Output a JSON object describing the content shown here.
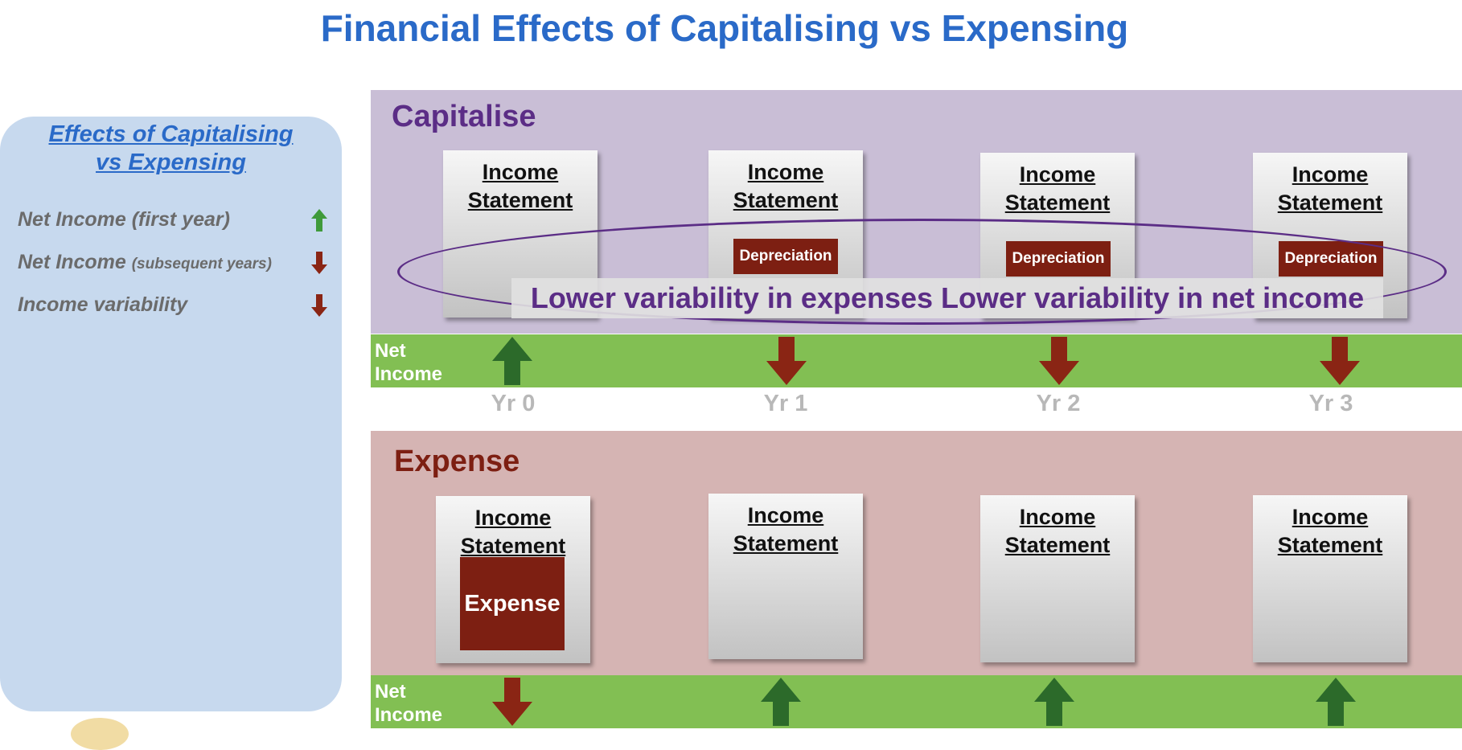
{
  "title": "Financial Effects of Capitalising vs Expensing",
  "sidebar": {
    "heading_line1": "Effects of Capitalising",
    "heading_line2": "vs Expensing",
    "effects": [
      {
        "label": "Net Income (first year)",
        "qualifier": "",
        "direction": "up",
        "color": "#3f9a3a"
      },
      {
        "label": "Net Income",
        "qualifier": "(subsequent years)",
        "direction": "down",
        "color": "#8a2514"
      },
      {
        "label": "Income variability",
        "qualifier": "",
        "direction": "down",
        "color": "#8a2514"
      }
    ]
  },
  "years": [
    "Yr 0",
    "Yr 1",
    "Yr 2",
    "Yr 3"
  ],
  "capitalise": {
    "title": "Capitalise",
    "title_color": "#5b2d86",
    "statements": [
      {
        "line1": "Income",
        "line2": "Statement",
        "item": ""
      },
      {
        "line1": "Income",
        "line2": "Statement",
        "item": "Depreciation"
      },
      {
        "line1": "Income",
        "line2": "Statement",
        "item": "Depreciation"
      },
      {
        "line1": "Income",
        "line2": "Statement",
        "item": "Depreciation"
      }
    ],
    "net_income_label": "Net\nIncome",
    "net_income_arrows": [
      "up",
      "down",
      "down",
      "down"
    ],
    "callout": "Lower variability in expenses Lower variability in net income"
  },
  "expense": {
    "title": "Expense",
    "title_color": "#7d1f12",
    "statements": [
      {
        "line1": "Income",
        "line2": "Statement",
        "item": "Expense"
      },
      {
        "line1": "Income",
        "line2": "Statement",
        "item": ""
      },
      {
        "line1": "Income",
        "line2": "Statement",
        "item": ""
      },
      {
        "line1": "Income",
        "line2": "Statement",
        "item": ""
      }
    ],
    "net_income_label": "Net\nIncome",
    "net_income_arrows": [
      "down",
      "up",
      "up",
      "up"
    ]
  },
  "colors": {
    "up_arrow": "#2c6a2a",
    "down_arrow": "#8a2514",
    "bar": "#82bf53"
  }
}
